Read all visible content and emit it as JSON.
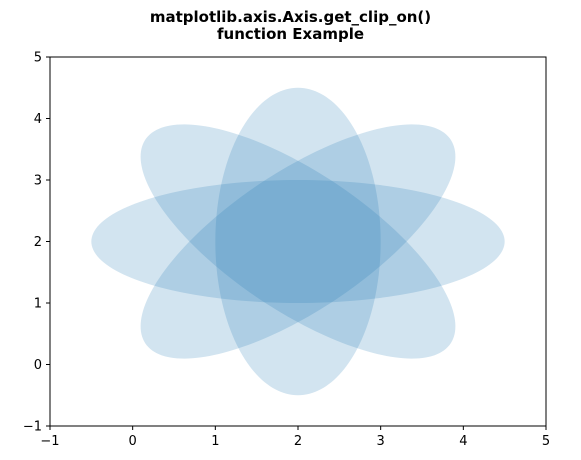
{
  "chart_data": {
    "type": "scatter",
    "title_lines": [
      "matplotlib.axis.Axis.get_clip_on()",
      "function Example"
    ],
    "xlabel": "",
    "ylabel": "",
    "xlim": [
      -1,
      5
    ],
    "ylim": [
      -1,
      5
    ],
    "xticks": [
      -1,
      0,
      1,
      2,
      3,
      4,
      5
    ],
    "yticks": [
      -1,
      0,
      1,
      2,
      3,
      4,
      5
    ],
    "xtick_labels": [
      "−1",
      "0",
      "1",
      "2",
      "3",
      "4",
      "5"
    ],
    "ytick_labels": [
      "−1",
      "0",
      "1",
      "2",
      "3",
      "4",
      "5"
    ],
    "grid": false,
    "legend": "none",
    "ellipses": [
      {
        "center": [
          2,
          2
        ],
        "width": 5,
        "height": 2,
        "angle_deg": 0
      },
      {
        "center": [
          2,
          2
        ],
        "width": 5,
        "height": 2,
        "angle_deg": 45
      },
      {
        "center": [
          2,
          2
        ],
        "width": 5,
        "height": 2,
        "angle_deg": 90
      },
      {
        "center": [
          2,
          2
        ],
        "width": 5,
        "height": 2,
        "angle_deg": 135
      }
    ],
    "fill_color": "#1f77b4",
    "fill_alpha": 0.2
  }
}
